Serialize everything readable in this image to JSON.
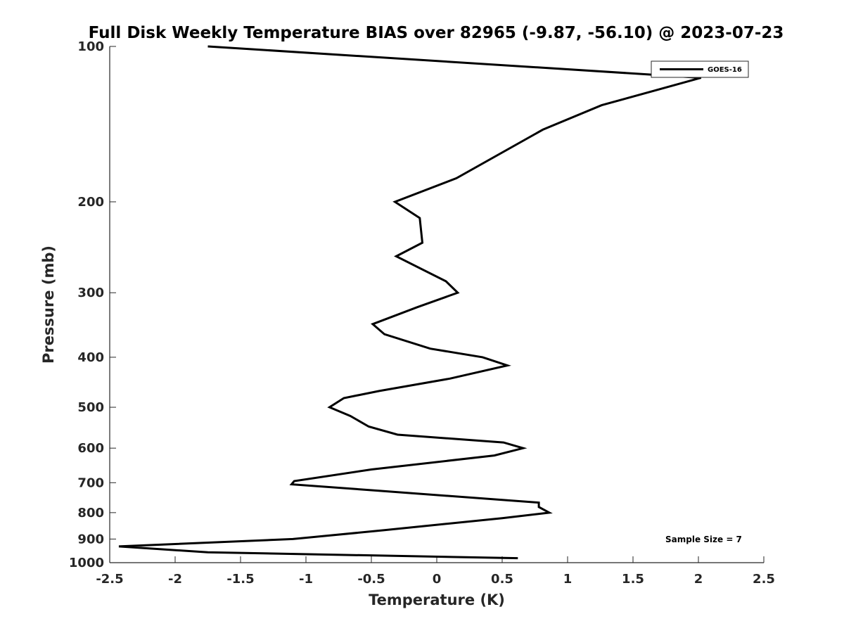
{
  "chart_data": {
    "type": "line",
    "title": "Full Disk Weekly Temperature BIAS over 82965 (-9.87, -56.10) @ 2023-07-23",
    "xlabel": "Temperature (K)",
    "ylabel": "Pressure (mb)",
    "xlim": [
      -2.5,
      2.5
    ],
    "ylim": [
      100,
      1000
    ],
    "y_scale": "log",
    "y_reversed": true,
    "grid": false,
    "legend_position": "top-right",
    "x_ticks": [
      -2.5,
      -2,
      -1.5,
      -1,
      -0.5,
      0,
      0.5,
      1,
      1.5,
      2,
      2.5
    ],
    "x_tick_labels": [
      "-2.5",
      "-2",
      "-1.5",
      "-1",
      "-0.5",
      "0",
      "0.5",
      "1",
      "1.5",
      "2",
      "2.5"
    ],
    "y_ticks": [
      100,
      200,
      300,
      400,
      500,
      600,
      700,
      800,
      900,
      1000
    ],
    "y_tick_labels": [
      "100",
      "200",
      "300",
      "400",
      "500",
      "600",
      "700",
      "800",
      "900",
      "1000"
    ],
    "series": [
      {
        "name": "GOES-16",
        "color": "#000000",
        "points": [
          {
            "t": -1.75,
            "p": 100
          },
          {
            "t": 2.02,
            "p": 115
          },
          {
            "t": 1.26,
            "p": 130
          },
          {
            "t": 0.81,
            "p": 145
          },
          {
            "t": 0.15,
            "p": 180
          },
          {
            "t": -0.32,
            "p": 200
          },
          {
            "t": -0.13,
            "p": 215
          },
          {
            "t": -0.11,
            "p": 240
          },
          {
            "t": -0.31,
            "p": 255
          },
          {
            "t": 0.07,
            "p": 285
          },
          {
            "t": 0.16,
            "p": 300
          },
          {
            "t": -0.15,
            "p": 320
          },
          {
            "t": -0.49,
            "p": 345
          },
          {
            "t": -0.4,
            "p": 361
          },
          {
            "t": -0.05,
            "p": 385
          },
          {
            "t": 0.35,
            "p": 400
          },
          {
            "t": 0.54,
            "p": 415
          },
          {
            "t": 0.1,
            "p": 440
          },
          {
            "t": -0.44,
            "p": 465
          },
          {
            "t": -0.71,
            "p": 480
          },
          {
            "t": -0.82,
            "p": 500
          },
          {
            "t": -0.66,
            "p": 520
          },
          {
            "t": -0.52,
            "p": 545
          },
          {
            "t": -0.3,
            "p": 565
          },
          {
            "t": 0.51,
            "p": 585
          },
          {
            "t": 0.66,
            "p": 600
          },
          {
            "t": 0.44,
            "p": 620
          },
          {
            "t": -0.5,
            "p": 660
          },
          {
            "t": -1.09,
            "p": 695
          },
          {
            "t": -1.11,
            "p": 705
          },
          {
            "t": -0.46,
            "p": 725
          },
          {
            "t": 0.78,
            "p": 765
          },
          {
            "t": 0.78,
            "p": 780
          },
          {
            "t": 0.86,
            "p": 800
          },
          {
            "t": 0.5,
            "p": 820
          },
          {
            "t": -0.4,
            "p": 865
          },
          {
            "t": -1.1,
            "p": 900
          },
          {
            "t": -2.43,
            "p": 930
          },
          {
            "t": -1.75,
            "p": 955
          },
          {
            "t": 0.62,
            "p": 980
          }
        ]
      }
    ],
    "annotations": {
      "sample_size": "Sample Size = 7"
    }
  }
}
